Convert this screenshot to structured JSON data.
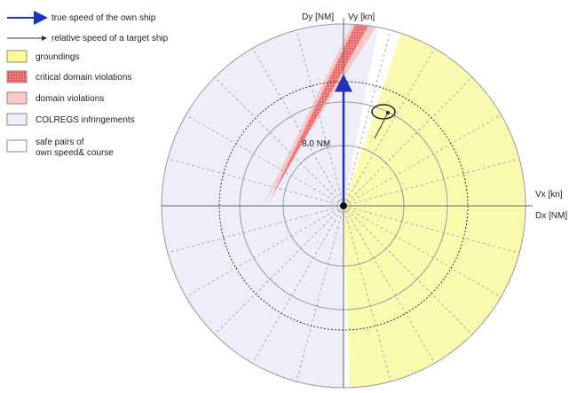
{
  "legend": [
    {
      "label": "true speed of the own ship"
    },
    {
      "label": "relative speed of a target ship"
    },
    {
      "label": "groundings"
    },
    {
      "label": "critical domain violations"
    },
    {
      "label": "domain violations"
    },
    {
      "label": "COLREGS infringements"
    },
    {
      "label": "safe pairs of own speed& course"
    }
  ],
  "axes": {
    "dy": "Dy [NM]",
    "vy": "Vy [kn]",
    "vx": "Vx [kn]",
    "dx": "Dx [NM]"
  },
  "distance_label": "8.0 NM"
}
